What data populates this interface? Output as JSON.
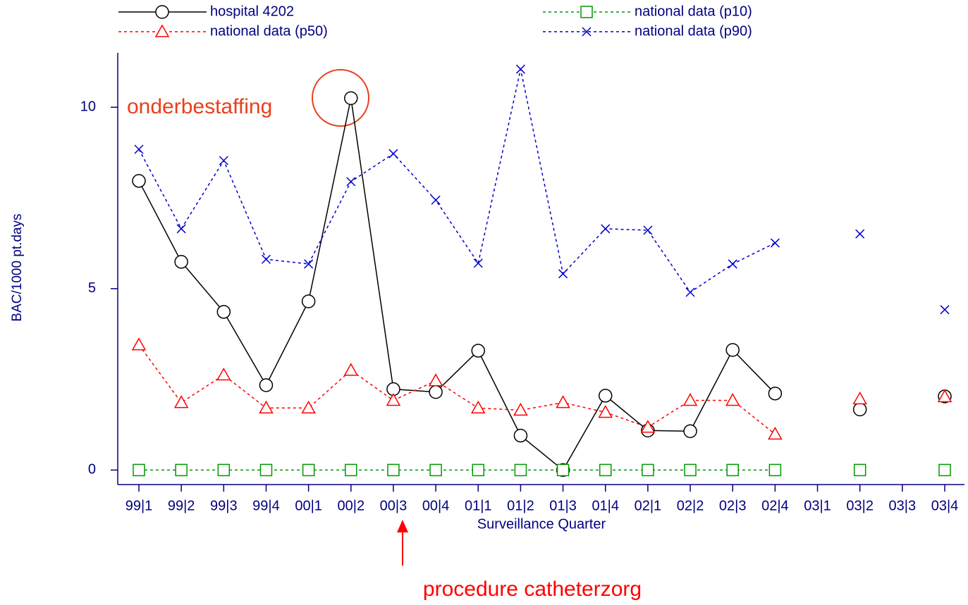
{
  "chart_data": {
    "type": "line",
    "xlabel": "Surveillance Quarter",
    "ylabel": "BAC/1000 pt.days",
    "annotations": [
      "onderbestaffing",
      "procedure catheterzorg"
    ],
    "categories": [
      "99|1",
      "99|2",
      "99|3",
      "99|4",
      "00|1",
      "00|2",
      "00|3",
      "00|4",
      "01|1",
      "01|2",
      "01|3",
      "01|4",
      "02|1",
      "02|2",
      "02|3",
      "02|4",
      "03|1",
      "03|2",
      "03|3",
      "03|4"
    ],
    "series": [
      {
        "name": "hospital 4202",
        "color": "#000000",
        "marker": "circle",
        "linestyle": "solid",
        "values": [
          7.97,
          5.74,
          4.36,
          2.34,
          4.65,
          10.25,
          2.23,
          2.15,
          3.29,
          0.95,
          0,
          2.05,
          1.09,
          1.07,
          3.31,
          2.11,
          null,
          1.67,
          null,
          2.03
        ]
      },
      {
        "name": "national data (p10)",
        "color": "#009900",
        "marker": "square",
        "linestyle": "dotted",
        "values": [
          0,
          0,
          0,
          0,
          0,
          0,
          0,
          0,
          0,
          0,
          0,
          0,
          0,
          0,
          0,
          0,
          null,
          0,
          null,
          0
        ]
      },
      {
        "name": "national data (p50)",
        "color": "#ff0000",
        "marker": "triangle",
        "linestyle": "dotted",
        "values": [
          3.45,
          1.86,
          2.62,
          1.71,
          1.71,
          2.75,
          1.92,
          2.46,
          1.71,
          1.65,
          1.86,
          1.59,
          1.18,
          1.92,
          1.92,
          0.99,
          null,
          1.96,
          null,
          2.02
        ]
      },
      {
        "name": "national data (p90)",
        "color": "#0000cc",
        "marker": "x",
        "linestyle": "dotted",
        "values": [
          8.84,
          6.65,
          8.53,
          5.81,
          5.68,
          7.95,
          8.72,
          7.44,
          5.7,
          11.05,
          5.41,
          6.65,
          6.61,
          4.9,
          5.68,
          6.26,
          null,
          6.51,
          null,
          4.42
        ]
      }
    ],
    "ylim": [
      -0.4,
      11.5
    ],
    "yticks": [
      0,
      5,
      10
    ]
  }
}
